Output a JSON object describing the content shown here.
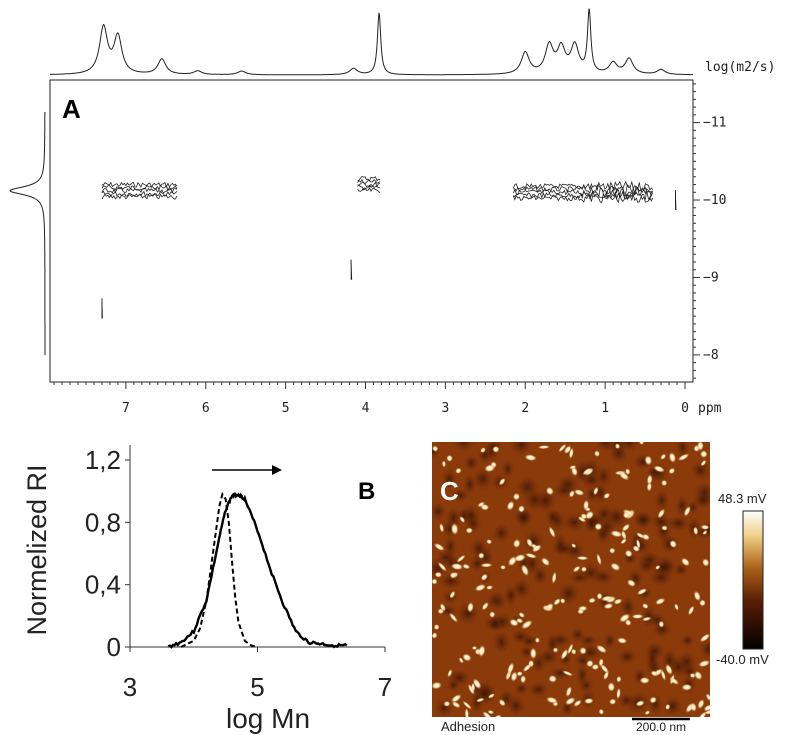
{
  "chart_data": [
    {
      "type": "contour",
      "panel_label": "A",
      "x_unit_label": "ppm",
      "y_unit_label": "log(m2/s)",
      "x_ticks": [
        7,
        6,
        5,
        4,
        3,
        2,
        1,
        0
      ],
      "y_ticks": [
        -11,
        -10,
        -9,
        -8
      ],
      "xlim": [
        7.95,
        -0.1
      ],
      "ylim": [
        -11.55,
        -7.65
      ],
      "projection_peaks_ppm": [
        {
          "ppm": 7.28,
          "h": 0.75
        },
        {
          "ppm": 7.1,
          "h": 0.6
        },
        {
          "ppm": 6.55,
          "h": 0.25
        },
        {
          "ppm": 6.1,
          "h": 0.06
        },
        {
          "ppm": 5.55,
          "h": 0.06
        },
        {
          "ppm": 4.15,
          "h": 0.1
        },
        {
          "ppm": 3.83,
          "h": 1.0
        },
        {
          "ppm": 2.0,
          "h": 0.35
        },
        {
          "ppm": 1.7,
          "h": 0.45
        },
        {
          "ppm": 1.55,
          "h": 0.4
        },
        {
          "ppm": 1.38,
          "h": 0.45
        },
        {
          "ppm": 1.2,
          "h": 1.0
        },
        {
          "ppm": 0.9,
          "h": 0.18
        },
        {
          "ppm": 0.7,
          "h": 0.25
        },
        {
          "ppm": 0.3,
          "h": 0.08
        }
      ],
      "projection_peak_log_d": -10.12,
      "contour_clusters": [
        {
          "ppm_from": 7.3,
          "ppm_to": 6.35,
          "log_d": -10.12
        },
        {
          "ppm_from": 4.1,
          "ppm_to": 3.8,
          "log_d": -10.2
        },
        {
          "ppm_from": 2.15,
          "ppm_to": 0.4,
          "log_d": -10.1
        },
        {
          "ppm_from": 0.12,
          "ppm_to": 0.08,
          "log_d": -10.0
        },
        {
          "ppm_from": 7.3,
          "ppm_to": 7.3,
          "log_d": -8.6
        },
        {
          "ppm_from": 4.18,
          "ppm_to": 4.18,
          "log_d": -9.1
        }
      ]
    },
    {
      "type": "line",
      "panel_label": "B",
      "xlabel": "log Mn",
      "ylabel": "Normelized RI",
      "xlim": [
        3,
        7
      ],
      "ylim": [
        0,
        1.2
      ],
      "x_ticks": [
        3,
        5,
        7
      ],
      "y_ticks": [
        "0",
        "0,4",
        "0,8",
        "1,2"
      ],
      "y_tick_values": [
        0,
        0.4,
        0.8,
        1.2
      ],
      "annotation": "arrow pointing right, toward higher log Mn",
      "series": [
        {
          "style": "dashed",
          "x": [
            3.8,
            4.0,
            4.1,
            4.2,
            4.3,
            4.4,
            4.45,
            4.5,
            4.55,
            4.6,
            4.65,
            4.7,
            4.8,
            4.9,
            5.0
          ],
          "values": [
            0.0,
            0.04,
            0.12,
            0.3,
            0.6,
            0.9,
            0.98,
            0.95,
            0.8,
            0.55,
            0.32,
            0.16,
            0.04,
            0.01,
            0.0
          ]
        },
        {
          "style": "solid",
          "x": [
            3.6,
            3.8,
            4.0,
            4.2,
            4.4,
            4.5,
            4.6,
            4.7,
            4.8,
            5.0,
            5.2,
            5.4,
            5.6,
            5.8,
            6.0,
            6.2,
            6.4
          ],
          "values": [
            0.0,
            0.03,
            0.1,
            0.3,
            0.7,
            0.88,
            0.97,
            0.98,
            0.95,
            0.75,
            0.5,
            0.28,
            0.1,
            0.03,
            0.02,
            0.01,
            0.01
          ]
        }
      ]
    },
    {
      "type": "heatmap",
      "panel_label": "C",
      "caption": "Adhesion",
      "scale_bar": "200.0 nm",
      "colorbar_max": "48.3 mV",
      "colorbar_min": "-40.0 mV",
      "colors": {
        "low": "#000000",
        "mid": "#8b3a0a",
        "high": "#ffffff"
      }
    }
  ]
}
